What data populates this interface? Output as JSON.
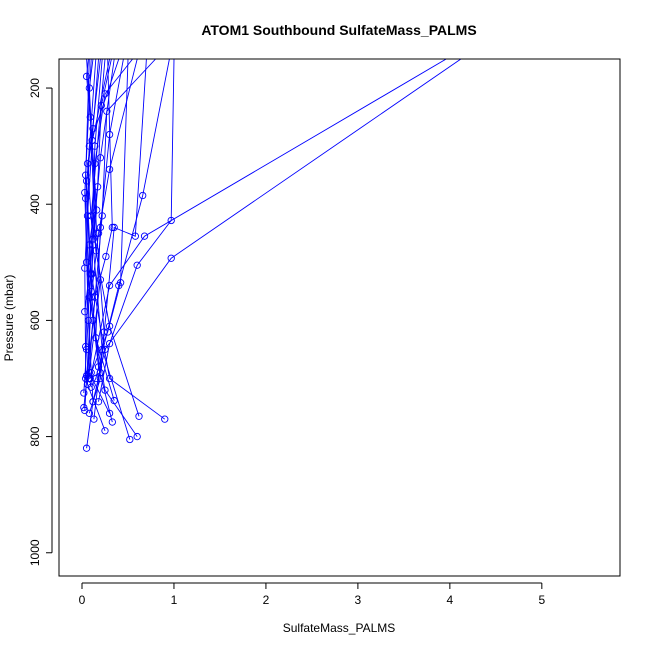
{
  "chart_data": {
    "type": "line",
    "title": "ATOM1 Southbound SulfateMass_PALMS",
    "xlabel": "SulfateMass_PALMS",
    "ylabel": "Pressure (mbar)",
    "xlim": [
      -0.25,
      5.85
    ],
    "ylim": [
      1040,
      150
    ],
    "y_reversed": true,
    "x_ticks": [
      0,
      1,
      2,
      3,
      4,
      5
    ],
    "y_ticks": [
      200,
      400,
      600,
      800,
      1000
    ],
    "grid": false,
    "legend": "none",
    "series_color": "#0000ff",
    "series": [
      {
        "x": [
          0.2,
          0.05,
          0.1,
          0.3,
          0.9
        ],
        "y": [
          150,
          360,
          520,
          700,
          770
        ]
      },
      {
        "x": [
          0.15,
          0.04,
          0.08,
          0.25,
          0.6
        ],
        "y": [
          150,
          390,
          560,
          720,
          800
        ]
      },
      {
        "x": [
          0.3,
          0.06,
          0.12,
          0.22,
          0.52
        ],
        "y": [
          150,
          330,
          470,
          650,
          805
        ]
      },
      {
        "x": [
          0.4,
          0.08,
          0.05,
          0.18,
          0.33
        ],
        "y": [
          150,
          300,
          500,
          680,
          775
        ]
      },
      {
        "x": [
          0.1,
          0.03,
          0.07,
          0.12,
          0.05
        ],
        "y": [
          150,
          380,
          600,
          740,
          820
        ]
      },
      {
        "x": [
          0.25,
          0.1,
          0.2,
          0.08,
          0.3
        ],
        "y": [
          150,
          420,
          530,
          690,
          760
        ]
      },
      {
        "x": [
          0.05,
          0.09,
          0.15,
          0.3,
          0.62
        ],
        "y": [
          150,
          250,
          480,
          610,
          765
        ]
      },
      {
        "x": [
          0.35,
          0.2,
          0.12,
          0.06,
          0.25
        ],
        "y": [
          150,
          320,
          460,
          710,
          790
        ]
      },
      {
        "x": [
          0.6,
          0.3,
          0.18,
          0.1,
          0.03
        ],
        "y": [
          150,
          340,
          450,
          560,
          755
        ]
      },
      {
        "x": [
          0.8,
          0.27,
          0.22,
          0.12,
          0.02
        ],
        "y": [
          150,
          240,
          420,
          600,
          750
        ]
      },
      {
        "x": [
          0.12,
          0.08,
          0.16,
          0.24,
          0.13
        ],
        "y": [
          150,
          200,
          450,
          620,
          770
        ]
      },
      {
        "x": [
          0.45,
          0.3,
          0.2,
          0.15,
          0.35
        ],
        "y": [
          150,
          280,
          440,
          630,
          738
        ]
      },
      {
        "x": [
          0.08,
          0.04,
          0.1,
          0.2,
          0.08
        ],
        "y": [
          150,
          350,
          550,
          700,
          760
        ]
      },
      {
        "x": [
          0.22,
          0.14,
          0.09,
          0.05,
          0.02
        ],
        "y": [
          150,
          300,
          520,
          650,
          725
        ]
      },
      {
        "x": [
          0.95,
          0.66,
          0.4,
          0.15,
          0.1
        ],
        "y": [
          150,
          385,
          540,
          700,
          715
        ]
      },
      {
        "x": [
          1.0,
          0.97,
          0.6,
          0.3,
          0.18
        ],
        "y": [
          150,
          428,
          505,
          640,
          740
        ]
      },
      {
        "x": [
          0.7,
          0.58,
          0.35,
          0.2,
          0.08
        ],
        "y": [
          150,
          455,
          440,
          690,
          700
        ]
      },
      {
        "x": [
          4.12,
          0.97,
          0.25,
          0.12
        ],
        "y": [
          150,
          493,
          650,
          740
        ]
      },
      {
        "x": [
          3.96,
          0.68,
          0.3,
          0.09
        ],
        "y": [
          150,
          455,
          540,
          700
        ]
      },
      {
        "x": [
          0.5,
          0.42,
          0.28,
          0.1,
          0.05
        ],
        "y": [
          150,
          535,
          620,
          690,
          695
        ]
      },
      {
        "x": [
          0.28,
          0.33,
          0.26,
          0.14,
          0.07
        ],
        "y": [
          150,
          440,
          490,
          560,
          700
        ]
      },
      {
        "x": [
          0.18,
          0.12,
          0.06,
          0.03,
          0.04
        ],
        "y": [
          150,
          270,
          420,
          510,
          700
        ]
      },
      {
        "x": [
          0.55,
          0.25,
          0.14,
          0.11,
          0.06
        ],
        "y": [
          150,
          210,
          330,
          520,
          710
        ]
      },
      {
        "x": [
          0.32,
          0.21,
          0.17,
          0.08,
          0.04
        ],
        "y": [
          150,
          230,
          370,
          470,
          645
        ]
      },
      {
        "x": [
          0.07,
          0.05,
          0.11,
          0.16,
          0.03
        ],
        "y": [
          150,
          180,
          290,
          410,
          585
        ]
      }
    ]
  }
}
